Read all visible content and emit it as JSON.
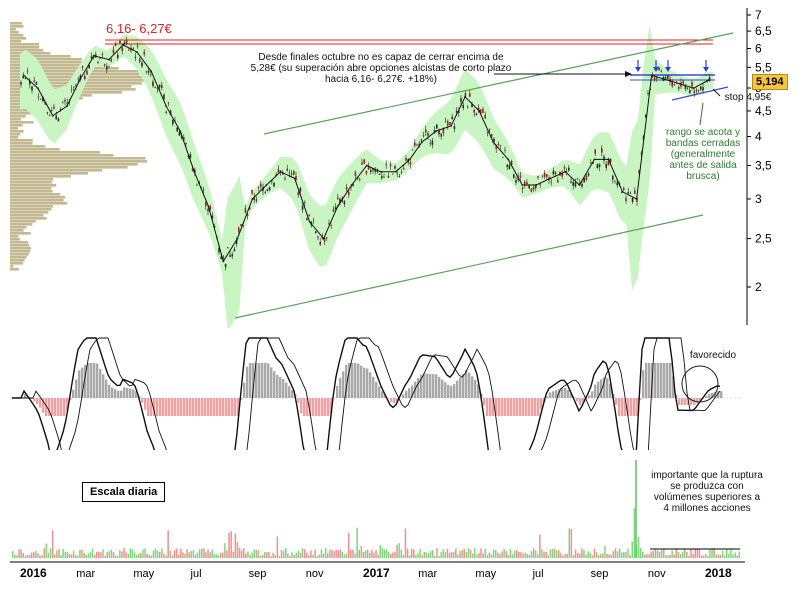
{
  "chart_data": {
    "type": "line",
    "timeframe_label": "Escala diaria",
    "price_panel": {
      "y_scale": "log",
      "ylim": [
        1.6,
        7.2
      ],
      "y_ticks": [
        "2",
        "2,5",
        "3",
        "3,5",
        "4",
        "4,5",
        "5",
        "5,5",
        "6",
        "6,5",
        "7"
      ],
      "y_tick_values": [
        2,
        2.5,
        3,
        3.5,
        4,
        4.5,
        5,
        5.5,
        6,
        6.5,
        7
      ],
      "last_price_label": "5,194",
      "series": [
        {
          "x": [
            "2016-01-05",
            "2016-01-20",
            "2016-02-05",
            "2016-02-20",
            "2016-03-05",
            "2016-03-20",
            "2016-04-05",
            "2016-04-20",
            "2016-05-05",
            "2016-05-20",
            "2016-06-05",
            "2016-06-20",
            "2016-07-05",
            "2016-07-20",
            "2016-08-05",
            "2016-08-20",
            "2016-09-05",
            "2016-09-20",
            "2016-10-05",
            "2016-10-20",
            "2016-11-05",
            "2016-11-20",
            "2016-12-05",
            "2016-12-20",
            "2017-01-05",
            "2017-01-20",
            "2017-02-05",
            "2017-02-20",
            "2017-03-05",
            "2017-03-20",
            "2017-04-05",
            "2017-04-20",
            "2017-05-05",
            "2017-05-20",
            "2017-06-05",
            "2017-06-20",
            "2017-07-05",
            "2017-07-20",
            "2017-08-05",
            "2017-08-20",
            "2017-09-05",
            "2017-09-20",
            "2017-10-05",
            "2017-10-20",
            "2017-11-05",
            "2017-11-20",
            "2017-12-05",
            "2017-12-20",
            "2018-01-05"
          ],
          "values": [
            5.3,
            5.0,
            4.4,
            4.6,
            5.2,
            5.8,
            5.7,
            6.1,
            5.9,
            5.4,
            4.6,
            4.1,
            3.4,
            2.9,
            2.25,
            2.5,
            3.0,
            3.2,
            3.4,
            3.3,
            2.7,
            2.5,
            2.9,
            3.2,
            3.5,
            3.4,
            3.4,
            3.6,
            3.9,
            4.1,
            4.2,
            4.8,
            4.5,
            3.9,
            3.6,
            3.2,
            3.2,
            3.3,
            3.4,
            3.2,
            3.6,
            3.6,
            3.1,
            3.0,
            5.3,
            5.2,
            5.1,
            5.0,
            5.19
          ]
        }
      ]
    },
    "x_ticks": [
      "2016",
      "mar",
      "may",
      "jul",
      "sep",
      "nov",
      "2017",
      "mar",
      "may",
      "jul",
      "sep",
      "nov",
      "2018"
    ],
    "x_tick_dates": [
      "2016-01-01",
      "2016-03-01",
      "2016-05-01",
      "2016-07-01",
      "2016-09-01",
      "2016-11-01",
      "2017-01-01",
      "2017-03-01",
      "2017-05-01",
      "2017-07-01",
      "2017-09-01",
      "2017-11-01",
      "2018-01-01"
    ],
    "annotations": {
      "target_zone": "6,16- 6,27€",
      "note_breakout": "Desde finales octubre no es capaz de cerrar encima de 5,28€ (su superación abre opciones alcistas de corto plazo hacia 6,16- 6,27€. +18%)",
      "stop": "stop 4,95€",
      "range_note": "rango se acota y bandas cerradas (generalmente antes de salida brusca)",
      "oscillator_note": "favorecido",
      "volume_note": "importante que la ruptura se produzca con volúmenes superiores a 4 millones acciones"
    }
  }
}
